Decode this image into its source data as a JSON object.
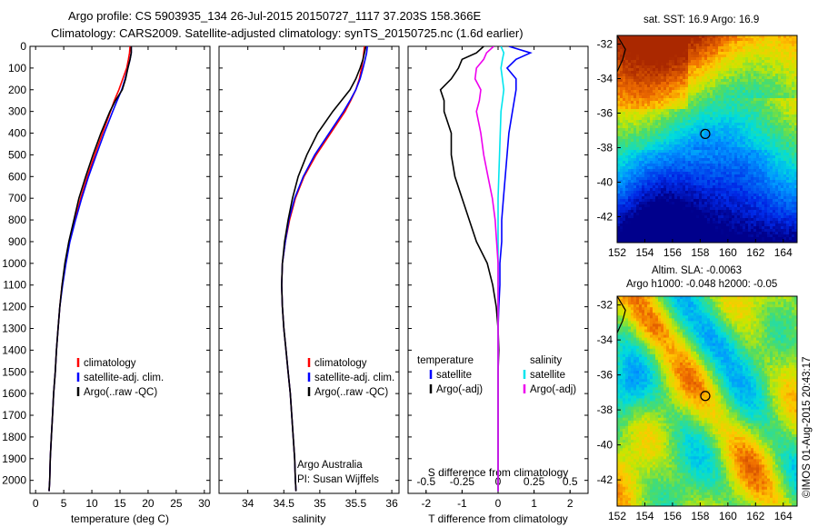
{
  "title": {
    "line1": "Argo profile: CS 5903935_134 26-Jul-2015 20150727_1117 37.203S 158.366E",
    "line2": "Climatology: CARS2009. Satellite-adjusted climatology: synTS_20150725.nc (1.6d earlier)"
  },
  "colors": {
    "climatology": "#ff0000",
    "satellite": "#0000ff",
    "argo": "#000000",
    "satellite_salinity": "#00e5ee",
    "argo_salinity": "#ee00ee"
  },
  "legend_tp": [
    "climatology",
    "satellite-adj. clim.",
    "Argo(..raw -QC)"
  ],
  "legend_sal": [
    "climatology",
    "satellite-adj. clim.",
    "Argo(..raw -QC)"
  ],
  "legend_diff": {
    "left_head": "temperature",
    "right_head": "salinity",
    "items": [
      "satellite",
      "Argo(-adj)",
      "satellite",
      "Argo(-adj)"
    ]
  },
  "annotation": {
    "line1": "Argo Australia",
    "line2": "PI: Susan Wijffels"
  },
  "diff_axis_top_title": "S difference from climatology",
  "map_top": {
    "title": "sat. SST: 16.9 Argo: 16.9"
  },
  "map_bottom": {
    "title1": "Altim. SLA: -0.0063",
    "title2": "Argo h1000: -0.048 h2000: -0.05"
  },
  "maps_axes": {
    "x_ticks": [
      "152",
      "154",
      "156",
      "158",
      "160",
      "162",
      "164"
    ],
    "y_ticks": [
      "-32",
      "-34",
      "-36",
      "-38",
      "-40",
      "-42"
    ]
  },
  "credit": "©IMOS 01-Aug-2015 20:43:17",
  "chart_data": [
    {
      "type": "line",
      "xlabel": "temperature (deg C)",
      "ylabel": "",
      "xlim": [
        -1,
        31
      ],
      "ylim": [
        2060,
        0
      ],
      "x_ticks": [
        "0",
        "5",
        "10",
        "15",
        "20",
        "25",
        "30"
      ],
      "y_ticks": [
        "0",
        "100",
        "200",
        "300",
        "400",
        "500",
        "600",
        "700",
        "800",
        "900",
        "1000",
        "1100",
        "1200",
        "1300",
        "1400",
        "1500",
        "1600",
        "1700",
        "1800",
        "1900",
        "2000"
      ],
      "depth": [
        0,
        30,
        60,
        100,
        150,
        200,
        250,
        300,
        400,
        500,
        600,
        700,
        800,
        900,
        1000,
        1100,
        1200,
        1300,
        1400,
        1500,
        1600,
        1700,
        1800,
        1900,
        2000,
        2050
      ],
      "series": [
        {
          "name": "climatology",
          "values": [
            16.8,
            16.7,
            16.5,
            16.2,
            15.5,
            14.8,
            14.0,
            13.3,
            11.9,
            10.5,
            9.2,
            8.0,
            7.0,
            6.0,
            5.3,
            4.7,
            4.3,
            4.0,
            3.7,
            3.5,
            3.2,
            3.0,
            2.8,
            2.6,
            2.5,
            2.4
          ]
        },
        {
          "name": "satellite-adj. clim.",
          "values": [
            17.0,
            17.0,
            16.8,
            16.4,
            15.9,
            15.3,
            14.5,
            13.7,
            12.2,
            10.8,
            9.4,
            8.2,
            7.1,
            6.1,
            5.4,
            4.8,
            4.3,
            4.0,
            3.7,
            3.5,
            3.2,
            3.0,
            2.8,
            2.6,
            2.5,
            2.4
          ]
        },
        {
          "name": "Argo(..raw -QC)",
          "values": [
            17.0,
            17.0,
            16.8,
            16.4,
            16.0,
            15.4,
            14.2,
            13.2,
            11.6,
            10.2,
            8.9,
            7.7,
            6.8,
            5.9,
            5.2,
            4.7,
            4.3,
            4.0,
            3.7,
            3.5,
            3.2,
            3.0,
            2.8,
            2.6,
            2.5,
            2.4
          ]
        }
      ]
    },
    {
      "type": "line",
      "xlabel": "salinity",
      "ylabel": "",
      "xlim": [
        33.6,
        36.1
      ],
      "ylim": [
        2060,
        0
      ],
      "x_ticks": [
        "34",
        "34.5",
        "35",
        "35.5",
        "36"
      ],
      "depth": [
        0,
        30,
        60,
        100,
        150,
        200,
        250,
        300,
        400,
        500,
        600,
        700,
        800,
        900,
        1000,
        1100,
        1200,
        1300,
        1400,
        1500,
        1600,
        1700,
        1800,
        1900,
        2000,
        2050
      ],
      "series": [
        {
          "name": "climatology",
          "values": [
            35.62,
            35.61,
            35.6,
            35.58,
            35.55,
            35.5,
            35.43,
            35.35,
            35.15,
            34.95,
            34.78,
            34.66,
            34.58,
            34.52,
            34.48,
            34.47,
            34.48,
            34.5,
            34.53,
            34.56,
            34.59,
            34.61,
            34.63,
            34.65,
            34.66,
            34.67
          ]
        },
        {
          "name": "satellite-adj. clim.",
          "values": [
            35.66,
            35.65,
            35.63,
            35.6,
            35.56,
            35.5,
            35.42,
            35.33,
            35.13,
            34.93,
            34.77,
            34.65,
            34.57,
            34.52,
            34.48,
            34.47,
            34.48,
            34.5,
            34.53,
            34.56,
            34.59,
            34.61,
            34.63,
            34.65,
            34.66,
            34.67
          ]
        },
        {
          "name": "Argo(..raw -QC)",
          "values": [
            35.64,
            35.62,
            35.6,
            35.56,
            35.5,
            35.42,
            35.3,
            35.18,
            34.97,
            34.82,
            34.7,
            34.62,
            34.56,
            34.51,
            34.48,
            34.47,
            34.48,
            34.5,
            34.53,
            34.56,
            34.59,
            34.61,
            34.63,
            34.65,
            34.66,
            34.67
          ]
        }
      ]
    },
    {
      "type": "line",
      "xlabel": "T difference from climatology",
      "xlim": [
        -2.5,
        2.5
      ],
      "x_ticks": [
        "-2",
        "-1",
        "0",
        "1",
        "2"
      ],
      "top_axis_label": "S difference from climatology",
      "top_x_ticks": [
        "-0.5",
        "-0.25",
        "0",
        "0.25",
        "0.5"
      ],
      "ylim": [
        2060,
        0
      ],
      "depth": [
        0,
        30,
        60,
        100,
        150,
        200,
        250,
        300,
        400,
        500,
        600,
        700,
        800,
        900,
        1000,
        1100,
        1200,
        1300,
        1400,
        1500,
        1600,
        1700,
        1800,
        1900,
        2000,
        2050
      ],
      "series": [
        {
          "name": "temperature satellite",
          "values": [
            0.3,
            0.9,
            0.5,
            0.25,
            0.5,
            0.5,
            0.45,
            0.4,
            0.3,
            0.25,
            0.2,
            0.15,
            0.1,
            0.1,
            0.05,
            0.05,
            0.02,
            0.0,
            0.0,
            0.0,
            0.0,
            0.0,
            0.0,
            0.0,
            0.0,
            0.0
          ]
        },
        {
          "name": "temperature Argo(-adj)",
          "values": [
            -0.4,
            -0.6,
            -1.0,
            -1.1,
            -1.3,
            -1.6,
            -1.5,
            -1.5,
            -1.3,
            -1.3,
            -1.2,
            -1.0,
            -0.8,
            -0.6,
            -0.3,
            -0.15,
            -0.05,
            0.0,
            0.02,
            0.0,
            0.0,
            0.0,
            0.0,
            0.0,
            0.0,
            0.0
          ]
        },
        {
          "name": "salinity satellite",
          "values": [
            0.02,
            0.04,
            0.03,
            0.02,
            0.03,
            0.04,
            0.03,
            0.02,
            0.015,
            0.01,
            0.005,
            0.0,
            0.0,
            0.0,
            0.0,
            0.0,
            0.0,
            0.0,
            0.0,
            0.0,
            0.0,
            0.0,
            0.0,
            0.0,
            0.0,
            0.0
          ]
        },
        {
          "name": "salinity Argo(-adj)",
          "values": [
            -0.03,
            -0.08,
            -0.1,
            -0.15,
            -0.16,
            -0.12,
            -0.13,
            -0.15,
            -0.12,
            -0.1,
            -0.07,
            -0.04,
            -0.02,
            -0.01,
            0.0,
            0.0,
            0.0,
            0.0,
            0.0,
            0.0,
            0.0,
            0.0,
            0.0,
            0.0,
            0.0,
            0.0
          ]
        }
      ]
    },
    {
      "type": "heatmap",
      "title": "sat. SST: 16.9 Argo: 16.9",
      "xlim": [
        152,
        165
      ],
      "ylim": [
        -43.5,
        -31.5
      ],
      "marker": {
        "lon": 158.366,
        "lat": -37.203
      }
    },
    {
      "type": "heatmap",
      "title": "Altim. SLA: -0.0063",
      "xlim": [
        152,
        165
      ],
      "ylim": [
        -43.5,
        -31.5
      ],
      "marker": {
        "lon": 158.366,
        "lat": -37.203
      }
    }
  ]
}
